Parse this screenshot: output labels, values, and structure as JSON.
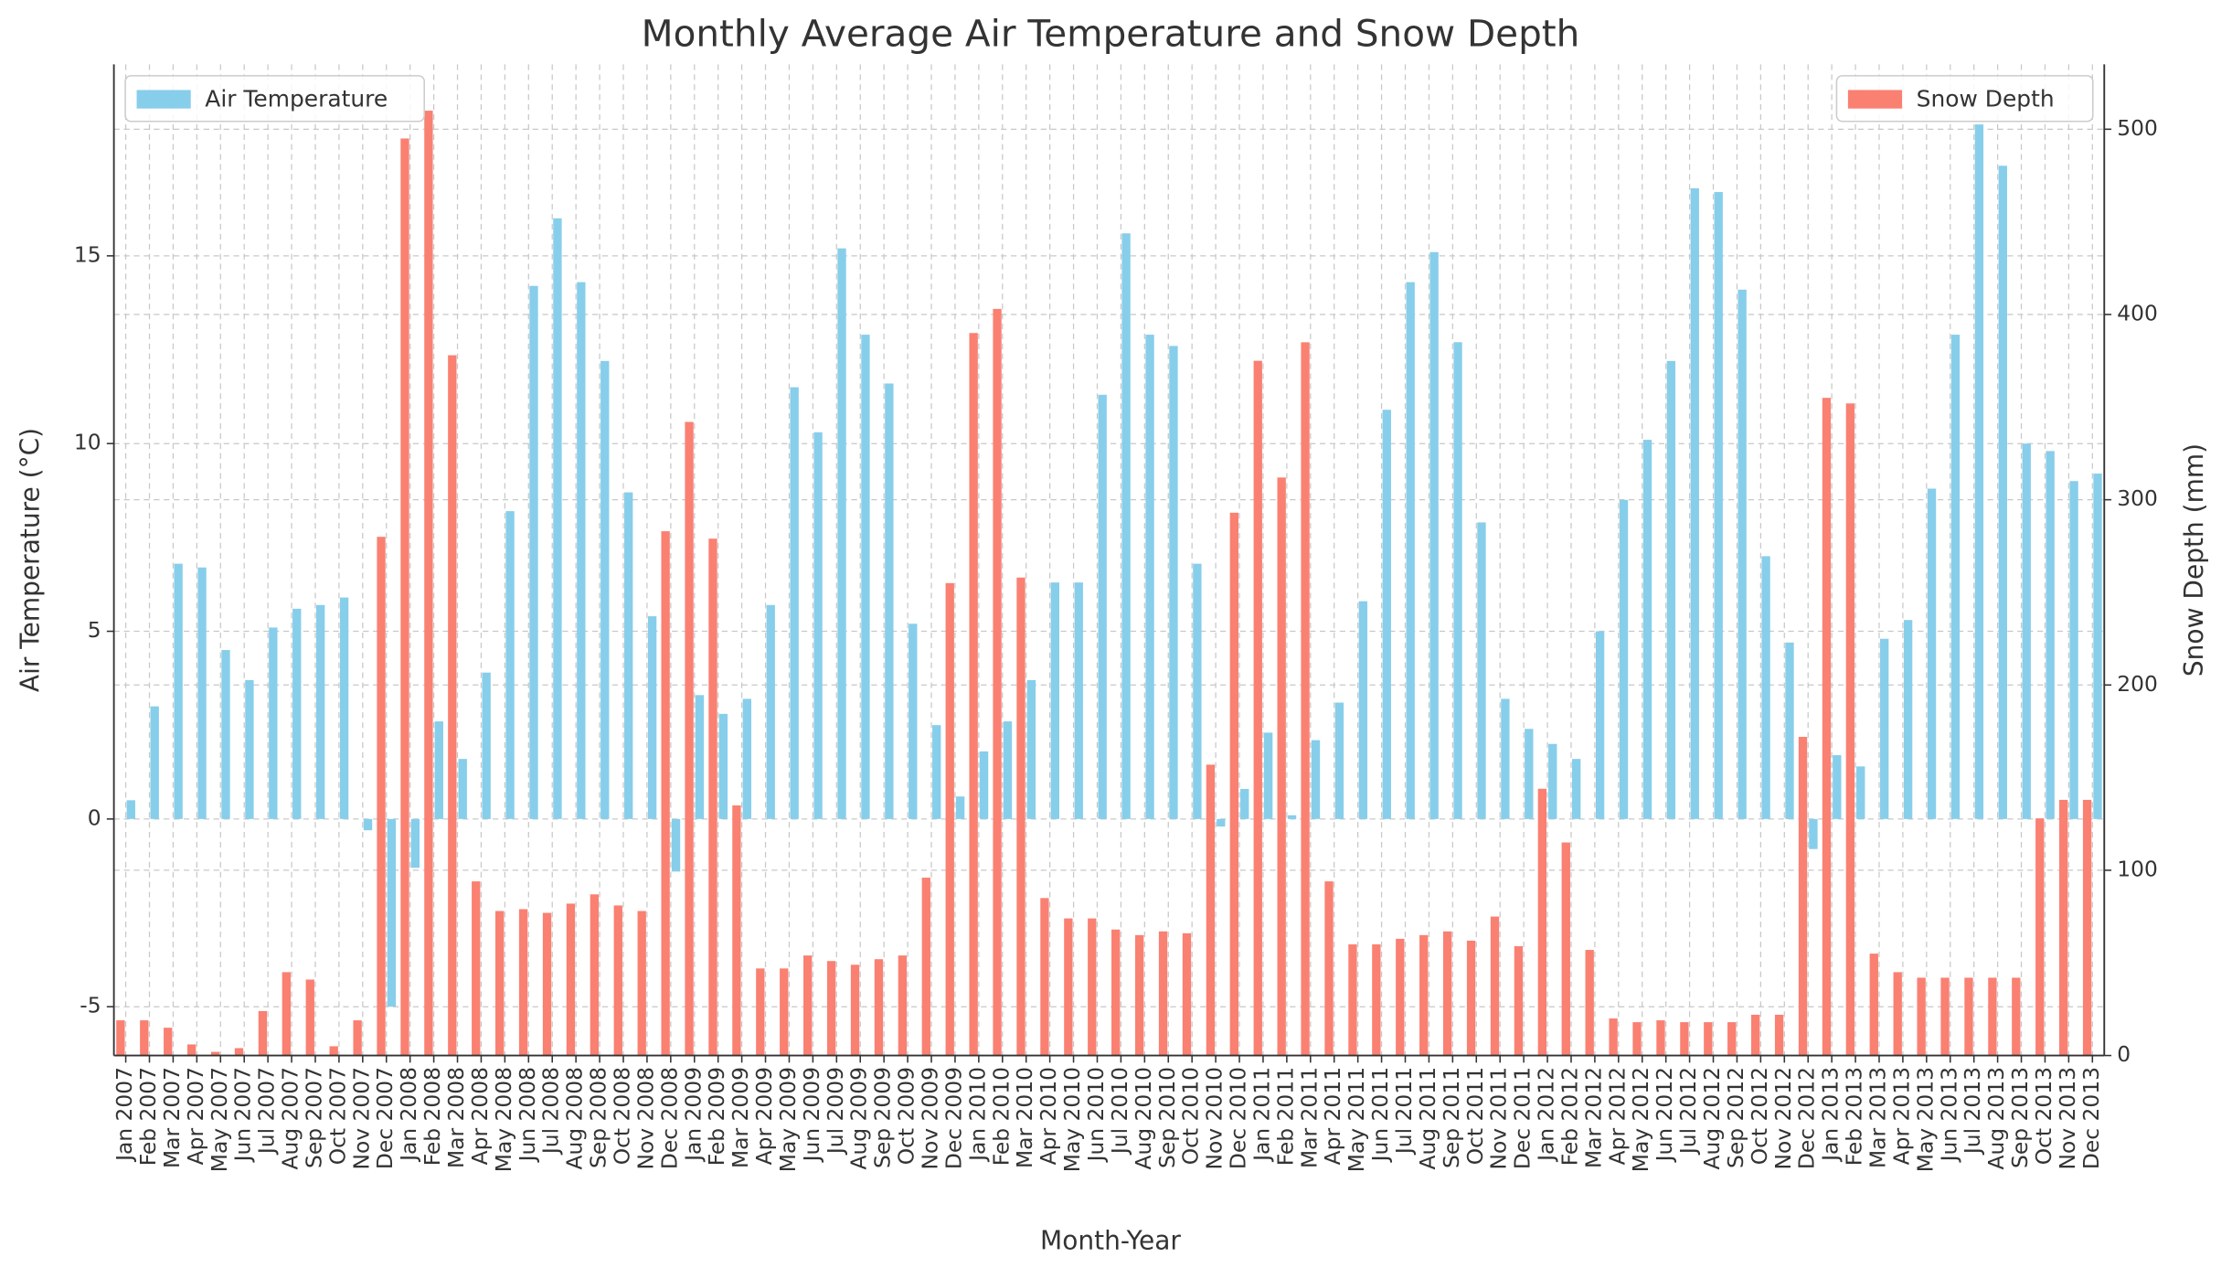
{
  "chart_data": {
    "type": "bar",
    "title": "Monthly Average Air Temperature and Snow Depth",
    "x_label": "Month-Year",
    "y_label": "Air Temperature (°C)",
    "y2_label": "Snow Depth (mm)",
    "categories": [
      "Jan 2007",
      "Feb 2007",
      "Mar 2007",
      "Apr 2007",
      "May 2007",
      "Jun 2007",
      "Jul 2007",
      "Aug 2007",
      "Sep 2007",
      "Oct 2007",
      "Nov 2007",
      "Dec 2007",
      "Jan 2008",
      "Feb 2008",
      "Mar 2008",
      "Apr 2008",
      "May 2008",
      "Jun 2008",
      "Jul 2008",
      "Aug 2008",
      "Sep 2008",
      "Oct 2008",
      "Nov 2008",
      "Dec 2008",
      "Jan 2009",
      "Feb 2009",
      "Mar 2009",
      "Apr 2009",
      "May 2009",
      "Jun 2009",
      "Jul 2009",
      "Aug 2009",
      "Sep 2009",
      "Oct 2009",
      "Nov 2009",
      "Dec 2009",
      "Jan 2010",
      "Feb 2010",
      "Mar 2010",
      "Apr 2010",
      "May 2010",
      "Jun 2010",
      "Jul 2010",
      "Aug 2010",
      "Sep 2010",
      "Oct 2010",
      "Nov 2010",
      "Dec 2010",
      "Jan 2011",
      "Feb 2011",
      "Mar 2011",
      "Apr 2011",
      "May 2011",
      "Jun 2011",
      "Jul 2011",
      "Aug 2011",
      "Sep 2011",
      "Oct 2011",
      "Nov 2011",
      "Dec 2011",
      "Jan 2012",
      "Feb 2012",
      "Mar 2012",
      "Apr 2012",
      "May 2012",
      "Jun 2012",
      "Jul 2012",
      "Aug 2012",
      "Sep 2012",
      "Oct 2012",
      "Nov 2012",
      "Dec 2012",
      "Jan 2013",
      "Feb 2013",
      "Mar 2013",
      "Apr 2013",
      "May 2013",
      "Jun 2013",
      "Jul 2013",
      "Aug 2013",
      "Sep 2013",
      "Oct 2013",
      "Nov 2013",
      "Dec 2013"
    ],
    "series": [
      {
        "name": "Air Temperature",
        "color": "#87ceeb",
        "axis": "y",
        "legend_loc": "upper left",
        "values": [
          0.5,
          3.0,
          6.8,
          6.7,
          4.5,
          3.7,
          5.1,
          5.6,
          5.7,
          5.9,
          -0.3,
          -5.0,
          -1.3,
          2.6,
          1.6,
          3.9,
          8.2,
          14.2,
          16.0,
          14.3,
          12.2,
          8.7,
          5.4,
          -1.4,
          3.3,
          2.8,
          3.2,
          5.7,
          11.5,
          10.3,
          15.2,
          12.9,
          11.6,
          5.2,
          2.5,
          0.6,
          1.8,
          2.6,
          3.7,
          6.3,
          6.3,
          11.3,
          15.6,
          12.9,
          12.6,
          6.8,
          -0.2,
          0.8,
          2.3,
          0.1,
          2.1,
          3.1,
          5.8,
          10.9,
          14.3,
          15.1,
          12.7,
          7.9,
          3.2,
          2.4,
          2.0,
          1.6,
          5.0,
          8.5,
          10.1,
          12.2,
          16.8,
          16.7,
          14.1,
          7.0,
          4.7,
          -0.8,
          1.7,
          1.4,
          4.8,
          5.3,
          8.8,
          12.9,
          18.5,
          17.4,
          10.0,
          9.8,
          9.0,
          9.2
        ]
      },
      {
        "name": "Snow Depth",
        "color": "#fa8072",
        "axis": "y2",
        "legend_loc": "upper right",
        "values": [
          19,
          19,
          15,
          6,
          2,
          4,
          24,
          45,
          41,
          5,
          19,
          280,
          495,
          510,
          378,
          94,
          78,
          79,
          77,
          82,
          87,
          81,
          78,
          283,
          342,
          279,
          135,
          47,
          47,
          54,
          51,
          49,
          52,
          54,
          96,
          255,
          390,
          403,
          258,
          85,
          74,
          74,
          68,
          65,
          67,
          66,
          157,
          293,
          375,
          312,
          385,
          94,
          60,
          60,
          63,
          65,
          67,
          62,
          75,
          59,
          144,
          115,
          57,
          20,
          18,
          19,
          18,
          18,
          18,
          22,
          22,
          172,
          355,
          352,
          55,
          45,
          42,
          42,
          42,
          42,
          42,
          128,
          138,
          138
        ]
      }
    ],
    "ylim": [
      -6.3,
      20.1
    ],
    "yticks": [
      -5,
      0,
      5,
      10,
      15
    ],
    "y2lim": [
      0,
      535
    ],
    "y2ticks": [
      0,
      100,
      200,
      300,
      400,
      500
    ],
    "grid": true
  }
}
